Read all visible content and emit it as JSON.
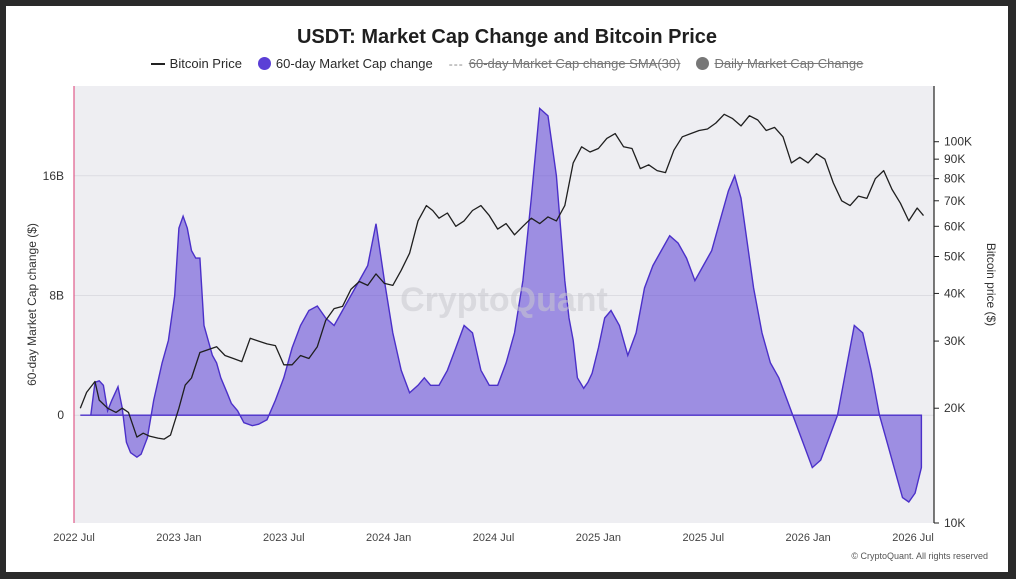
{
  "chart_data": {
    "type": "line",
    "title": "USDT: Market Cap Change and Bitcoin Price",
    "watermark": "CryptoQuant",
    "copyright": "© CryptoQuant. All rights reserved",
    "legend": [
      {
        "label": "Bitcoin Price",
        "kind": "line",
        "color": "#1f1f1f",
        "active": true
      },
      {
        "label": "60-day Market Cap change",
        "kind": "dot",
        "color": "#5b3fd6",
        "active": true
      },
      {
        "label": "60-day Market Cap change SMA(30)",
        "kind": "dash",
        "color": "#8a8a8a",
        "active": false
      },
      {
        "label": "Daily Market Cap Change",
        "kind": "dot",
        "color": "#777777",
        "active": false
      }
    ],
    "x_axis": {
      "ticks": [
        "2022 Jul",
        "2023 Jan",
        "2023 Jul",
        "2024 Jan",
        "2024 Jul",
        "2025 Jan",
        "2025 Jul",
        "2026 Jan",
        "2026 Jul"
      ],
      "range": [
        2022.5,
        2026.6
      ]
    },
    "y_left": {
      "label": "60-day Market Cap change ($)",
      "ticks": [
        {
          "v": 0,
          "label": "0"
        },
        {
          "v": 8,
          "label": "8B"
        },
        {
          "v": 16,
          "label": "16B"
        }
      ],
      "range": [
        -7.2,
        22
      ]
    },
    "y_right": {
      "label": "Bitcoin price ($)",
      "scale": "log",
      "ticks": [
        {
          "v": 10000,
          "label": "10K"
        },
        {
          "v": 20000,
          "label": "20K"
        },
        {
          "v": 30000,
          "label": "30K"
        },
        {
          "v": 40000,
          "label": "40K"
        },
        {
          "v": 50000,
          "label": "50K"
        },
        {
          "v": 60000,
          "label": "60K"
        },
        {
          "v": 70000,
          "label": "70K"
        },
        {
          "v": 80000,
          "label": "80K"
        },
        {
          "v": 90000,
          "label": "90K"
        },
        {
          "v": 100000,
          "label": "100K"
        }
      ],
      "range": [
        10000,
        140000
      ]
    },
    "series": [
      {
        "name": "60-day Market Cap change",
        "color": "#5b3fd6",
        "x": [
          2022.53,
          2022.58,
          2022.6,
          2022.62,
          2022.64,
          2022.66,
          2022.68,
          2022.71,
          2022.73,
          2022.75,
          2022.77,
          2022.8,
          2022.82,
          2022.85,
          2022.88,
          2022.92,
          2022.95,
          2022.98,
          2023.0,
          2023.02,
          2023.04,
          2023.06,
          2023.08,
          2023.1,
          2023.12,
          2023.14,
          2023.16,
          2023.18,
          2023.2,
          2023.23,
          2023.25,
          2023.28,
          2023.31,
          2023.35,
          2023.38,
          2023.42,
          2023.46,
          2023.5,
          2023.54,
          2023.58,
          2023.62,
          2023.66,
          2023.7,
          2023.74,
          2023.78,
          2023.82,
          2023.86,
          2023.9,
          2023.94,
          2023.98,
          2024.02,
          2024.06,
          2024.1,
          2024.14,
          2024.17,
          2024.2,
          2024.24,
          2024.28,
          2024.32,
          2024.36,
          2024.4,
          2024.44,
          2024.48,
          2024.52,
          2024.56,
          2024.6,
          2024.64,
          2024.68,
          2024.72,
          2024.76,
          2024.8,
          2024.84,
          2024.86,
          2024.88,
          2024.9,
          2024.93,
          2024.95,
          2024.97,
          2025.0,
          2025.03,
          2025.06,
          2025.1,
          2025.14,
          2025.18,
          2025.22,
          2025.26,
          2025.3,
          2025.34,
          2025.38,
          2025.42,
          2025.46,
          2025.5,
          2025.54,
          2025.58,
          2025.62,
          2025.65,
          2025.68,
          2025.71,
          2025.74,
          2025.78,
          2025.82,
          2025.86,
          2025.9,
          2025.94,
          2025.98,
          2026.02,
          2026.06,
          2026.1,
          2026.14,
          2026.18,
          2026.22,
          2026.26,
          2026.3,
          2026.34,
          2026.38,
          2026.42,
          2026.45,
          2026.48,
          2026.51,
          2026.54
        ],
        "values": [
          0,
          0,
          2.2,
          2.3,
          2.0,
          0.3,
          1.0,
          1.9,
          0.5,
          -1.8,
          -2.5,
          -2.8,
          -2.6,
          -1.5,
          1.0,
          3.5,
          5.0,
          8.0,
          12.5,
          13.3,
          12.5,
          11.0,
          10.5,
          10.5,
          6.0,
          5.0,
          4.0,
          3.5,
          2.5,
          1.5,
          0.8,
          0.3,
          -0.5,
          -0.7,
          -0.6,
          -0.3,
          1.0,
          2.5,
          4.5,
          6.0,
          7.0,
          7.3,
          6.5,
          6.0,
          7.0,
          8.0,
          9.0,
          10.0,
          12.8,
          9.0,
          5.5,
          3.0,
          1.5,
          2.0,
          2.5,
          2.0,
          2.0,
          3.0,
          4.5,
          6.0,
          5.5,
          3.0,
          2.0,
          2.0,
          3.5,
          5.5,
          9.0,
          14.5,
          20.5,
          20.0,
          16.0,
          9.0,
          6.5,
          5.0,
          2.5,
          1.8,
          2.2,
          2.8,
          4.5,
          6.5,
          7.0,
          6.0,
          4.0,
          5.5,
          8.5,
          10.0,
          11.0,
          12.0,
          11.5,
          10.5,
          9.0,
          10.0,
          11.0,
          13.0,
          15.0,
          16.0,
          14.5,
          11.5,
          8.5,
          5.5,
          3.5,
          2.5,
          1.0,
          -0.5,
          -2.0,
          -3.5,
          -3.0,
          -1.5,
          0,
          3.0,
          6.0,
          5.5,
          3.0,
          0,
          -2.0,
          -4.0,
          -5.5,
          -5.8,
          -5.2,
          -3.5
        ]
      },
      {
        "name": "Bitcoin Price",
        "color": "#1f1f1f",
        "x": [
          2022.53,
          2022.56,
          2022.6,
          2022.62,
          2022.66,
          2022.7,
          2022.73,
          2022.76,
          2022.8,
          2022.83,
          2022.86,
          2022.9,
          2022.93,
          2022.96,
          2023.0,
          2023.03,
          2023.06,
          2023.1,
          2023.14,
          2023.18,
          2023.22,
          2023.26,
          2023.3,
          2023.34,
          2023.38,
          2023.42,
          2023.46,
          2023.5,
          2023.54,
          2023.58,
          2023.62,
          2023.66,
          2023.7,
          2023.74,
          2023.78,
          2023.82,
          2023.86,
          2023.9,
          2023.94,
          2023.98,
          2024.02,
          2024.06,
          2024.1,
          2024.14,
          2024.18,
          2024.21,
          2024.24,
          2024.28,
          2024.32,
          2024.36,
          2024.4,
          2024.44,
          2024.48,
          2024.52,
          2024.56,
          2024.6,
          2024.64,
          2024.68,
          2024.72,
          2024.76,
          2024.8,
          2024.84,
          2024.88,
          2024.92,
          2024.96,
          2025.0,
          2025.04,
          2025.08,
          2025.12,
          2025.16,
          2025.2,
          2025.24,
          2025.28,
          2025.32,
          2025.36,
          2025.4,
          2025.44,
          2025.48,
          2025.52,
          2025.56,
          2025.6,
          2025.64,
          2025.68,
          2025.72,
          2025.76,
          2025.8,
          2025.84,
          2025.88,
          2025.92,
          2025.96,
          2026.0,
          2026.04,
          2026.08,
          2026.12,
          2026.16,
          2026.2,
          2026.24,
          2026.28,
          2026.32,
          2026.36,
          2026.4,
          2026.44,
          2026.48,
          2026.52,
          2026.55
        ],
        "values": [
          20000,
          22000,
          23500,
          21000,
          20000,
          19500,
          20000,
          19500,
          16800,
          17200,
          16900,
          16700,
          16600,
          17000,
          20000,
          23000,
          24000,
          28000,
          28500,
          29000,
          27500,
          27000,
          26500,
          30500,
          30000,
          29500,
          29200,
          26000,
          26000,
          27500,
          27000,
          29000,
          34000,
          36500,
          37000,
          41000,
          43000,
          42000,
          45000,
          42500,
          42000,
          46000,
          51000,
          62000,
          68000,
          66000,
          63000,
          65000,
          60000,
          62000,
          66000,
          68000,
          64000,
          59000,
          61000,
          57000,
          60000,
          63000,
          61000,
          63500,
          62000,
          68000,
          88000,
          97000,
          94000,
          96000,
          102000,
          105000,
          97000,
          96000,
          85000,
          87000,
          84000,
          83000,
          95000,
          103000,
          105000,
          107000,
          108000,
          112000,
          118000,
          115000,
          110000,
          117000,
          114000,
          107000,
          109000,
          103000,
          88000,
          91000,
          88000,
          93000,
          90000,
          78000,
          70000,
          68000,
          72000,
          71000,
          80000,
          84000,
          75000,
          69000,
          62000,
          67000,
          64000
        ]
      }
    ]
  }
}
